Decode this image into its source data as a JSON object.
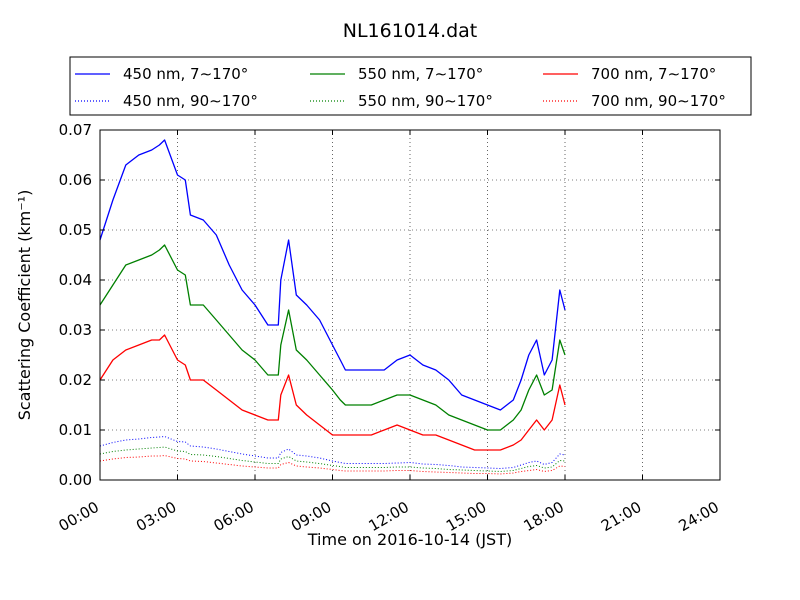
{
  "chart_data": {
    "type": "line",
    "title": "NL161014.dat",
    "xlabel": "Time on 2016-10-14 (JST)",
    "ylabel": "Scattering Coefficient (km⁻¹)",
    "x_unit": "hours",
    "xlim": [
      0,
      24
    ],
    "ylim": [
      0,
      0.07
    ],
    "x_ticks": [
      0,
      3,
      6,
      9,
      12,
      15,
      18,
      21,
      24
    ],
    "x_tick_labels": [
      "00:00",
      "03:00",
      "06:00",
      "09:00",
      "12:00",
      "15:00",
      "18:00",
      "21:00",
      "24:00"
    ],
    "y_ticks": [
      0,
      0.01,
      0.02,
      0.03,
      0.04,
      0.05,
      0.06,
      0.07
    ],
    "y_tick_labels": [
      "0.00",
      "0.01",
      "0.02",
      "0.03",
      "0.04",
      "0.05",
      "0.06",
      "0.07"
    ],
    "grid": true,
    "legend_position": "top",
    "x": [
      0,
      0.5,
      1,
      1.5,
      2,
      2.3,
      2.5,
      3,
      3.3,
      3.5,
      4,
      4.5,
      5,
      5.5,
      6,
      6.5,
      6.9,
      7,
      7.3,
      7.6,
      8,
      8.5,
      9,
      9.3,
      9.5,
      10,
      10.5,
      11,
      11.5,
      12,
      12.5,
      13,
      13.5,
      14,
      14.5,
      15,
      15.5,
      16,
      16.3,
      16.6,
      16.9,
      17.2,
      17.5,
      17.8,
      18
    ],
    "series": [
      {
        "name": "450 nm, 7∼170°",
        "color": "#0000ff",
        "style": "solid",
        "values": [
          0.048,
          0.056,
          0.063,
          0.065,
          0.066,
          0.067,
          0.068,
          0.061,
          0.06,
          0.053,
          0.052,
          0.049,
          0.043,
          0.038,
          0.035,
          0.031,
          0.031,
          0.04,
          0.048,
          0.037,
          0.035,
          0.032,
          0.027,
          0.024,
          0.022,
          0.022,
          0.022,
          0.022,
          0.024,
          0.025,
          0.023,
          0.022,
          0.02,
          0.017,
          0.016,
          0.015,
          0.014,
          0.016,
          0.02,
          0.025,
          0.028,
          0.021,
          0.024,
          0.038,
          0.034
        ]
      },
      {
        "name": "550 nm, 7∼170°",
        "color": "#008000",
        "style": "solid",
        "values": [
          0.035,
          0.039,
          0.043,
          0.044,
          0.045,
          0.046,
          0.047,
          0.042,
          0.041,
          0.035,
          0.035,
          0.032,
          0.029,
          0.026,
          0.024,
          0.021,
          0.021,
          0.027,
          0.034,
          0.026,
          0.024,
          0.021,
          0.018,
          0.016,
          0.015,
          0.015,
          0.015,
          0.016,
          0.017,
          0.017,
          0.016,
          0.015,
          0.013,
          0.012,
          0.011,
          0.01,
          0.01,
          0.012,
          0.014,
          0.018,
          0.021,
          0.017,
          0.018,
          0.028,
          0.025
        ]
      },
      {
        "name": "700 nm, 7∼170°",
        "color": "#ff0000",
        "style": "solid",
        "values": [
          0.02,
          0.024,
          0.026,
          0.027,
          0.028,
          0.028,
          0.029,
          0.024,
          0.023,
          0.02,
          0.02,
          0.018,
          0.016,
          0.014,
          0.013,
          0.012,
          0.012,
          0.017,
          0.021,
          0.015,
          0.013,
          0.011,
          0.009,
          0.009,
          0.009,
          0.009,
          0.009,
          0.01,
          0.011,
          0.01,
          0.009,
          0.009,
          0.008,
          0.007,
          0.006,
          0.006,
          0.006,
          0.007,
          0.008,
          0.01,
          0.012,
          0.01,
          0.012,
          0.019,
          0.015
        ]
      },
      {
        "name": "450 nm, 90∼170°",
        "color": "#0000ff",
        "style": "dotted",
        "values": [
          0.0068,
          0.0075,
          0.008,
          0.0082,
          0.0085,
          0.0086,
          0.0087,
          0.0077,
          0.0076,
          0.0068,
          0.0066,
          0.0062,
          0.0057,
          0.0052,
          0.0048,
          0.0044,
          0.0044,
          0.0055,
          0.0062,
          0.005,
          0.0048,
          0.0044,
          0.0038,
          0.0035,
          0.0033,
          0.0033,
          0.0033,
          0.0033,
          0.0034,
          0.0035,
          0.0032,
          0.0031,
          0.0029,
          0.0026,
          0.0025,
          0.0024,
          0.0023,
          0.0025,
          0.003,
          0.0035,
          0.0038,
          0.0031,
          0.0035,
          0.0052,
          0.005
        ]
      },
      {
        "name": "550 nm, 90∼170°",
        "color": "#008000",
        "style": "dotted",
        "values": [
          0.0052,
          0.0057,
          0.006,
          0.0062,
          0.0064,
          0.0065,
          0.0066,
          0.0058,
          0.0057,
          0.0051,
          0.005,
          0.0047,
          0.0043,
          0.0039,
          0.0036,
          0.0033,
          0.0033,
          0.0042,
          0.0047,
          0.0038,
          0.0036,
          0.0033,
          0.0029,
          0.0027,
          0.0025,
          0.0025,
          0.0025,
          0.0025,
          0.0026,
          0.0026,
          0.0024,
          0.0023,
          0.0021,
          0.002,
          0.0019,
          0.0018,
          0.0017,
          0.0019,
          0.0023,
          0.0027,
          0.0029,
          0.0024,
          0.0026,
          0.0039,
          0.0038
        ]
      },
      {
        "name": "700 nm, 90∼170°",
        "color": "#ff0000",
        "style": "dotted",
        "values": [
          0.0038,
          0.0042,
          0.0045,
          0.0046,
          0.0048,
          0.0048,
          0.0049,
          0.0043,
          0.0042,
          0.0038,
          0.0037,
          0.0034,
          0.0031,
          0.0028,
          0.0026,
          0.0024,
          0.0024,
          0.0031,
          0.0035,
          0.0028,
          0.0026,
          0.0024,
          0.0021,
          0.0019,
          0.0018,
          0.0018,
          0.0018,
          0.0018,
          0.0019,
          0.0019,
          0.0017,
          0.0016,
          0.0015,
          0.0014,
          0.0013,
          0.0013,
          0.0012,
          0.0014,
          0.0017,
          0.0019,
          0.0021,
          0.0017,
          0.0019,
          0.0028,
          0.0027
        ]
      }
    ],
    "legend_order": [
      0,
      1,
      2,
      3,
      4,
      5
    ]
  }
}
